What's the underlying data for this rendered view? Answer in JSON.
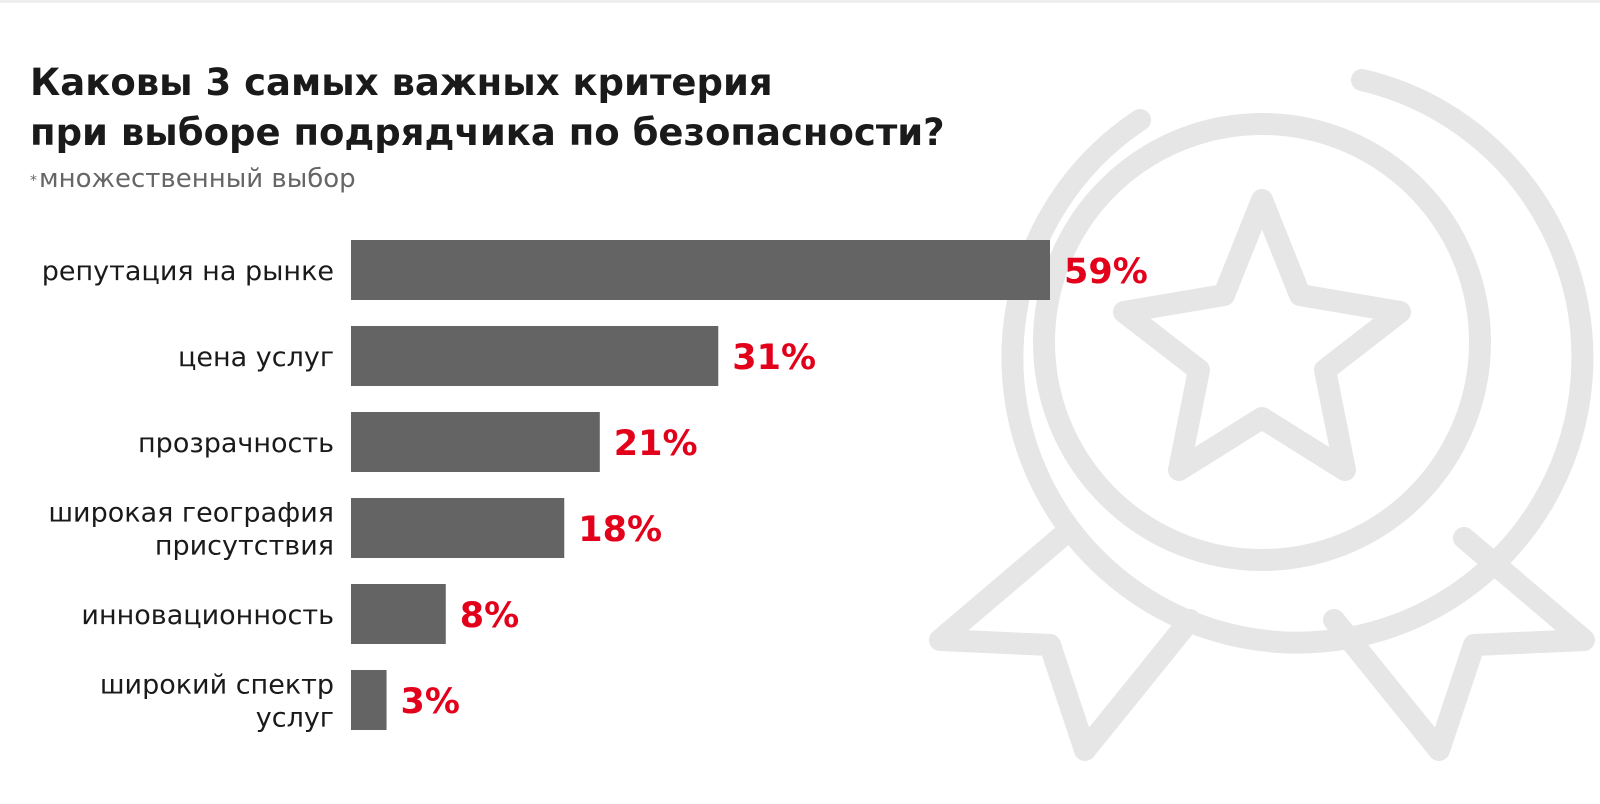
{
  "title_lines": [
    "Каковы 3 самых важных критерия",
    "при выборе подрядчика по безопасности?"
  ],
  "note": "множественный выбор",
  "note_mark": "*",
  "decor_icon": "award-ribbon-icon",
  "colors": {
    "bar": "#646464",
    "value_label": "#e3001b",
    "title": "#1a1a1a",
    "note": "#666666",
    "decor": "#e6e6e6"
  },
  "chart_data": {
    "type": "bar",
    "orientation": "horizontal",
    "title": "Каковы 3 самых важных критерия при выборе подрядчика по безопасности?",
    "subtitle": "множественный выбор",
    "categories": [
      [
        "репутация на рынке"
      ],
      [
        "цена услуг"
      ],
      [
        "прозрачность"
      ],
      [
        "широкая география",
        "присутствия"
      ],
      [
        "инновационность"
      ],
      [
        "широкий спектр",
        "услуг"
      ]
    ],
    "values": [
      59,
      31,
      21,
      18,
      8,
      3
    ],
    "value_labels": [
      "59%",
      "31%",
      "21%",
      "18%",
      "8%",
      "3%"
    ],
    "unit": "%",
    "xlim": [
      0,
      59
    ],
    "grid": false,
    "legend": "none"
  }
}
